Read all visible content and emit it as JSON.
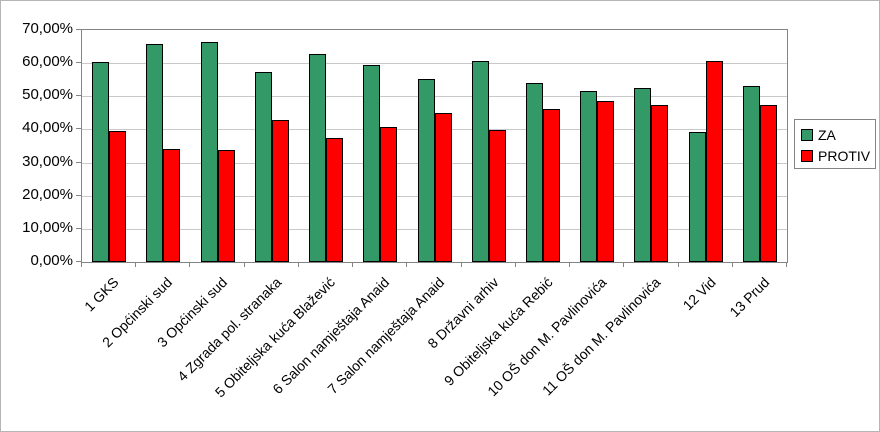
{
  "colors": {
    "za_green": "#339966",
    "protiv_red": "#ff0000",
    "bar_border": "#000000",
    "gridline": "#c9c9c9",
    "plot_border": "#848484",
    "outer_border": "#b5b5b5",
    "background": "#ffffff",
    "text": "#000000"
  },
  "legend": {
    "za_label": "ZA",
    "protiv_label": "PROTIV"
  },
  "chart_data": {
    "type": "bar",
    "title": "",
    "xlabel": "",
    "ylabel": "",
    "categories": [
      "1 GKS",
      "2 Općinski sud",
      "3 Općinski sud",
      "4 Zgrada pol. stranaka",
      "5 Obiteljska kuća Blažević",
      "6 Salon namještaja Anaid",
      "7 Salon namještaja Anaid",
      "8 Državni arhiv",
      "9 Obiteljska kuća Rebić",
      "10 OŠ don M. Pavlinovića",
      "11 OŠ don M. Pavlinovića",
      "12 Vid",
      "13 Prud"
    ],
    "series": [
      {
        "name": "ZA",
        "color": "#339966",
        "values": [
          60.4,
          65.9,
          66.3,
          57.4,
          62.8,
          59.3,
          55.1,
          60.5,
          54.0,
          51.7,
          52.6,
          39.3,
          53.0
        ]
      },
      {
        "name": "PROTIV",
        "color": "#ff0000",
        "values": [
          39.5,
          34.0,
          33.7,
          42.9,
          37.4,
          40.7,
          45.1,
          39.8,
          46.2,
          48.7,
          47.5,
          60.7,
          47.4
        ]
      }
    ],
    "ylim": [
      0,
      70
    ],
    "ytick_step": 10,
    "ytick_labels": [
      "70,00%",
      "60,00%",
      "50,00%",
      "40,00%",
      "30,00%",
      "20,00%",
      "10,00%",
      "0,00%"
    ],
    "grid": true,
    "legend_position": "right",
    "bar_labels_rotation_deg": 45
  }
}
